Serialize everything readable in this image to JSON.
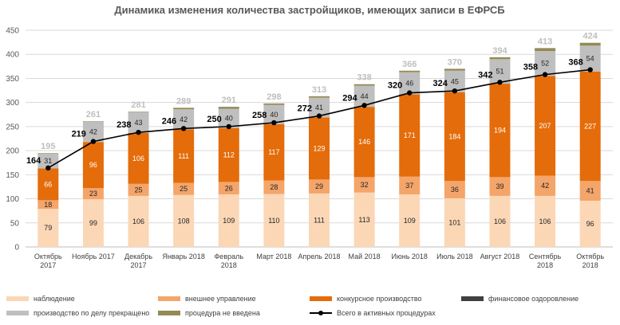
{
  "chart_data": {
    "type": "bar",
    "stacked": true,
    "title": "Динамика изменения количества застройщиков, имеющих записи в ЕФРСБ",
    "xlabel": "",
    "ylabel": "",
    "ylim": [
      0,
      450
    ],
    "yticks": [
      0,
      50,
      100,
      150,
      200,
      250,
      300,
      350,
      400,
      450
    ],
    "ytick_labels": [
      "0",
      "50",
      "100",
      "150",
      "200",
      "250",
      "300",
      "350",
      "400",
      "450"
    ],
    "grid": true,
    "legend_position": "bottom",
    "categories": [
      [
        "Октябрь",
        "2017"
      ],
      [
        "Ноябрь 2017"
      ],
      [
        "Декабрь",
        "2017"
      ],
      [
        "Январь 2018"
      ],
      [
        "Февраль",
        "2018"
      ],
      [
        "Март 2018"
      ],
      [
        "Апрель 2018"
      ],
      [
        "Май 2018"
      ],
      [
        "Июнь 2018"
      ],
      [
        "Июль 2018"
      ],
      [
        "Август 2018"
      ],
      [
        "Сентябрь",
        "2018"
      ],
      [
        "Октябрь",
        "2018"
      ]
    ],
    "series": [
      {
        "name": "наблюдение",
        "color": "#fbd7b6",
        "values": [
          79,
          99,
          106,
          108,
          109,
          110,
          111,
          113,
          109,
          101,
          106,
          106,
          96
        ]
      },
      {
        "name": "внешнее управление",
        "color": "#f4a56a",
        "values": [
          18,
          23,
          25,
          25,
          26,
          28,
          29,
          32,
          37,
          36,
          39,
          42,
          41
        ]
      },
      {
        "name": "конкурсное производство",
        "color": "#e46c0a",
        "values": [
          66,
          96,
          106,
          111,
          112,
          117,
          129,
          146,
          171,
          184,
          194,
          207,
          227
        ]
      },
      {
        "name": "финансовое оздоровление",
        "color": "#404040",
        "values": [
          0,
          0,
          0,
          0,
          0,
          0,
          0,
          0,
          0,
          0,
          0,
          0,
          0
        ]
      },
      {
        "name": "производство  по делу прекращено",
        "color": "#bfbfbf",
        "values": [
          31,
          42,
          43,
          42,
          40,
          40,
          41,
          44,
          46,
          45,
          51,
          52,
          54
        ]
      },
      {
        "name": "процедура  не введена",
        "color": "#948a54",
        "values": [
          1,
          1,
          1,
          3,
          4,
          3,
          3,
          3,
          3,
          4,
          4,
          6,
          6
        ]
      }
    ],
    "bar_totals": [
      195,
      261,
      281,
      289,
      291,
      298,
      313,
      338,
      366,
      370,
      394,
      413,
      424
    ],
    "line": {
      "name": "Всего в активных процедурах",
      "color": "#000000",
      "values": [
        164,
        219,
        238,
        246,
        250,
        258,
        272,
        294,
        320,
        324,
        342,
        358,
        368
      ]
    },
    "labeled_series": [
      "наблюдение",
      "внешнее управление",
      "конкурсное производство",
      "производство  по делу прекращено"
    ]
  }
}
